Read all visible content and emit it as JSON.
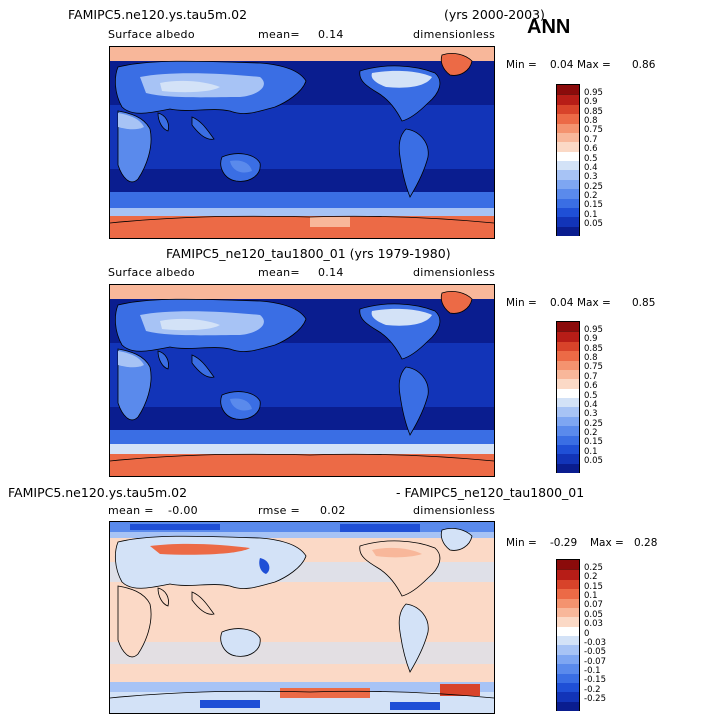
{
  "panel1": {
    "case_title": "FAMIPC5.ne120.ys.tau5m.02",
    "years": "(yrs 2000-2003)",
    "season": "ANN",
    "var_label": "Surface albedo",
    "mean_label": "mean=",
    "mean_value": "0.14",
    "units": "dimensionless",
    "min_label": "Min =",
    "min_value": "0.04",
    "max_label": "Max =",
    "max_value": "0.86"
  },
  "panel2": {
    "case_title": "FAMIPC5_ne120_tau1800_01 (yrs 1979-1980)",
    "var_label": "Surface albedo",
    "mean_label": "mean=",
    "mean_value": "0.14",
    "units": "dimensionless",
    "min_label": "Min =",
    "min_value": "0.04",
    "max_label": "Max =",
    "max_value": "0.85"
  },
  "panel3": {
    "title_left": "FAMIPC5.ne120.ys.tau5m.02",
    "title_right": "- FAMIPC5_ne120_tau1800_01",
    "mean_label": "mean =",
    "mean_value": "-0.00",
    "rmse_label": "rmse =",
    "rmse_value": "0.02",
    "units": "dimensionless",
    "min_label": "Min =",
    "min_value": "-0.29",
    "max_label": "Max =",
    "max_value": "0.28"
  },
  "chart_data": [
    {
      "type": "heatmap",
      "title": "FAMIPC5.ne120.ys.tau5m.02",
      "variable": "Surface albedo",
      "mean": 0.14,
      "min": 0.04,
      "max": 0.86,
      "colorbar_levels": [
        "0.05",
        "0.1",
        "0.15",
        "0.2",
        "0.25",
        "0.3",
        "0.4",
        "0.5",
        "0.6",
        "0.7",
        "0.75",
        "0.8",
        "0.85",
        "0.9",
        "0.95"
      ],
      "colorbar_colors": [
        "#0a1d8f",
        "#1234b8",
        "#1f4fd6",
        "#3a6ee4",
        "#5a8aec",
        "#7ea6f2",
        "#a7c3f5",
        "#d3e2f7",
        "#ffffff",
        "#fbd9c6",
        "#f8b79a",
        "#f4936f",
        "#ec6a46",
        "#d8432a",
        "#b71d17",
        "#8b0b0b"
      ]
    },
    {
      "type": "heatmap",
      "title": "FAMIPC5_ne120_tau1800_01",
      "variable": "Surface albedo",
      "mean": 0.14,
      "min": 0.04,
      "max": 0.85,
      "colorbar_levels": [
        "0.05",
        "0.1",
        "0.15",
        "0.2",
        "0.25",
        "0.3",
        "0.4",
        "0.5",
        "0.6",
        "0.7",
        "0.75",
        "0.8",
        "0.85",
        "0.9",
        "0.95"
      ],
      "colorbar_colors": [
        "#0a1d8f",
        "#1234b8",
        "#1f4fd6",
        "#3a6ee4",
        "#5a8aec",
        "#7ea6f2",
        "#a7c3f5",
        "#d3e2f7",
        "#ffffff",
        "#fbd9c6",
        "#f8b79a",
        "#f4936f",
        "#ec6a46",
        "#d8432a",
        "#b71d17",
        "#8b0b0b"
      ]
    },
    {
      "type": "heatmap",
      "title": "FAMIPC5.ne120.ys.tau5m.02 - FAMIPC5_ne120_tau1800_01",
      "mean": -0.0,
      "rmse": 0.02,
      "min": -0.29,
      "max": 0.28,
      "colorbar_levels": [
        "-0.25",
        "-0.2",
        "-0.15",
        "-0.1",
        "-0.07",
        "-0.05",
        "-0.03",
        "0",
        "0.03",
        "0.05",
        "0.07",
        "0.1",
        "0.15",
        "0.2",
        "0.25"
      ],
      "colorbar_colors": [
        "#0a1d8f",
        "#1234b8",
        "#1f4fd6",
        "#3a6ee4",
        "#5a8aec",
        "#7ea6f2",
        "#a7c3f5",
        "#d3e2f7",
        "#ffffff",
        "#fbd9c6",
        "#f8b79a",
        "#f4936f",
        "#ec6a46",
        "#d8432a",
        "#b71d17",
        "#8b0b0b"
      ]
    }
  ]
}
